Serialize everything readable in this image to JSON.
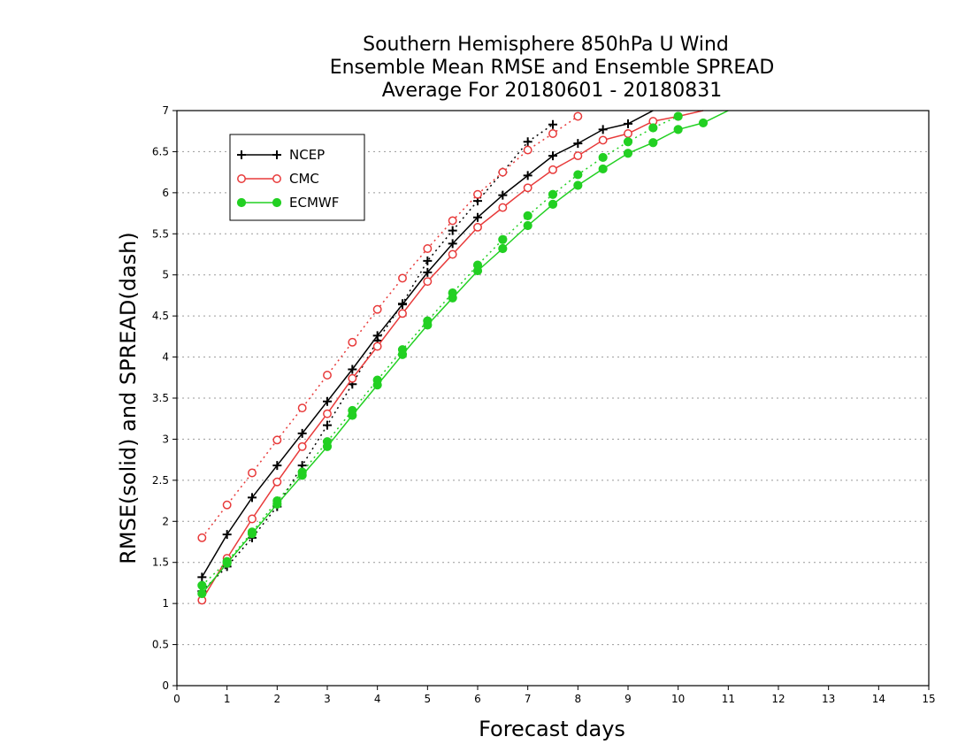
{
  "chart_data": {
    "type": "line",
    "title_lines": [
      "Southern Hemisphere 850hPa U Wind",
      "Ensemble Mean RMSE and Ensemble SPREAD",
      "Average For 20180601 - 20180831"
    ],
    "xlabel": "Forecast days",
    "ylabel": "RMSE(solid) and SPREAD(dash)",
    "xlim": [
      0,
      15
    ],
    "ylim": [
      0,
      7
    ],
    "xticks": [
      "0",
      "1",
      "2",
      "3",
      "4",
      "5",
      "6",
      "7",
      "8",
      "9",
      "10",
      "11",
      "12",
      "13",
      "14",
      "15"
    ],
    "yticks": [
      "0",
      "0.5",
      "1",
      "1.5",
      "2",
      "2.5",
      "3",
      "3.5",
      "4",
      "4.5",
      "5",
      "5.5",
      "6",
      "6.5",
      "7"
    ],
    "grid": "horizontal dotted",
    "legend_position": "top-left",
    "series": [
      {
        "name": "NCEP",
        "color": "#000000",
        "marker": "plus",
        "rmse": {
          "x": [
            0.5,
            1.0,
            1.5,
            2.0,
            2.5,
            3.0,
            3.5,
            4.0,
            4.5,
            5.0,
            5.5,
            6.0,
            6.5,
            7.0,
            7.5,
            8.0,
            8.5,
            9.0,
            9.5
          ],
          "y": [
            1.32,
            1.84,
            2.29,
            2.68,
            3.07,
            3.46,
            3.85,
            4.26,
            4.64,
            5.03,
            5.38,
            5.7,
            5.97,
            6.21,
            6.45,
            6.6,
            6.77,
            6.84,
            7.0
          ]
        },
        "spread": {
          "x": [
            0.5,
            1.0,
            1.5,
            2.0,
            2.5,
            3.0,
            3.5,
            4.0,
            4.5,
            5.0,
            5.5,
            6.0,
            6.5,
            7.0,
            7.5
          ],
          "y": [
            1.15,
            1.45,
            1.8,
            2.18,
            2.68,
            3.17,
            3.67,
            4.2,
            4.65,
            5.17,
            5.54,
            5.9,
            6.25,
            6.62,
            6.83
          ]
        }
      },
      {
        "name": "CMC",
        "color": "#e83a3a",
        "marker": "open-circle",
        "rmse": {
          "x": [
            0.5,
            1.0,
            1.5,
            2.0,
            2.5,
            3.0,
            3.5,
            4.0,
            4.5,
            5.0,
            5.5,
            6.0,
            6.5,
            7.0,
            7.5,
            8.0,
            8.5,
            9.0,
            9.5,
            10.0,
            10.5
          ],
          "y": [
            1.04,
            1.55,
            2.03,
            2.48,
            2.91,
            3.31,
            3.74,
            4.13,
            4.53,
            4.92,
            5.25,
            5.58,
            5.82,
            6.06,
            6.28,
            6.45,
            6.64,
            6.72,
            6.87,
            6.93,
            7.0
          ]
        },
        "spread": {
          "x": [
            0.5,
            1.0,
            1.5,
            2.0,
            2.5,
            3.0,
            3.5,
            4.0,
            4.5,
            5.0,
            5.5,
            6.0,
            6.5,
            7.0,
            7.5,
            8.0
          ],
          "y": [
            1.8,
            2.2,
            2.59,
            2.99,
            3.38,
            3.78,
            4.18,
            4.58,
            4.96,
            5.32,
            5.66,
            5.98,
            6.25,
            6.52,
            6.72,
            6.93
          ]
        }
      },
      {
        "name": "ECMWF",
        "color": "#22d022",
        "marker": "filled-circle",
        "rmse": {
          "x": [
            0.5,
            1.0,
            1.5,
            2.0,
            2.5,
            3.0,
            3.5,
            4.0,
            4.5,
            5.0,
            5.5,
            6.0,
            6.5,
            7.0,
            7.5,
            8.0,
            8.5,
            9.0,
            9.5,
            10.0,
            10.5,
            11.0
          ],
          "y": [
            1.12,
            1.49,
            1.85,
            2.21,
            2.56,
            2.91,
            3.29,
            3.66,
            4.03,
            4.39,
            4.72,
            5.05,
            5.32,
            5.6,
            5.86,
            6.09,
            6.29,
            6.48,
            6.61,
            6.77,
            6.85,
            7.0
          ]
        },
        "spread": {
          "x": [
            0.5,
            1.0,
            1.5,
            2.0,
            2.5,
            3.0,
            3.5,
            4.0,
            4.5,
            5.0,
            5.5,
            6.0,
            6.5,
            7.0,
            7.5,
            8.0,
            8.5,
            9.0,
            9.5,
            10.0
          ],
          "y": [
            1.22,
            1.51,
            1.87,
            2.25,
            2.6,
            2.97,
            3.35,
            3.72,
            4.09,
            4.44,
            4.78,
            5.12,
            5.43,
            5.72,
            5.98,
            6.22,
            6.43,
            6.62,
            6.79,
            6.93
          ]
        }
      }
    ]
  }
}
